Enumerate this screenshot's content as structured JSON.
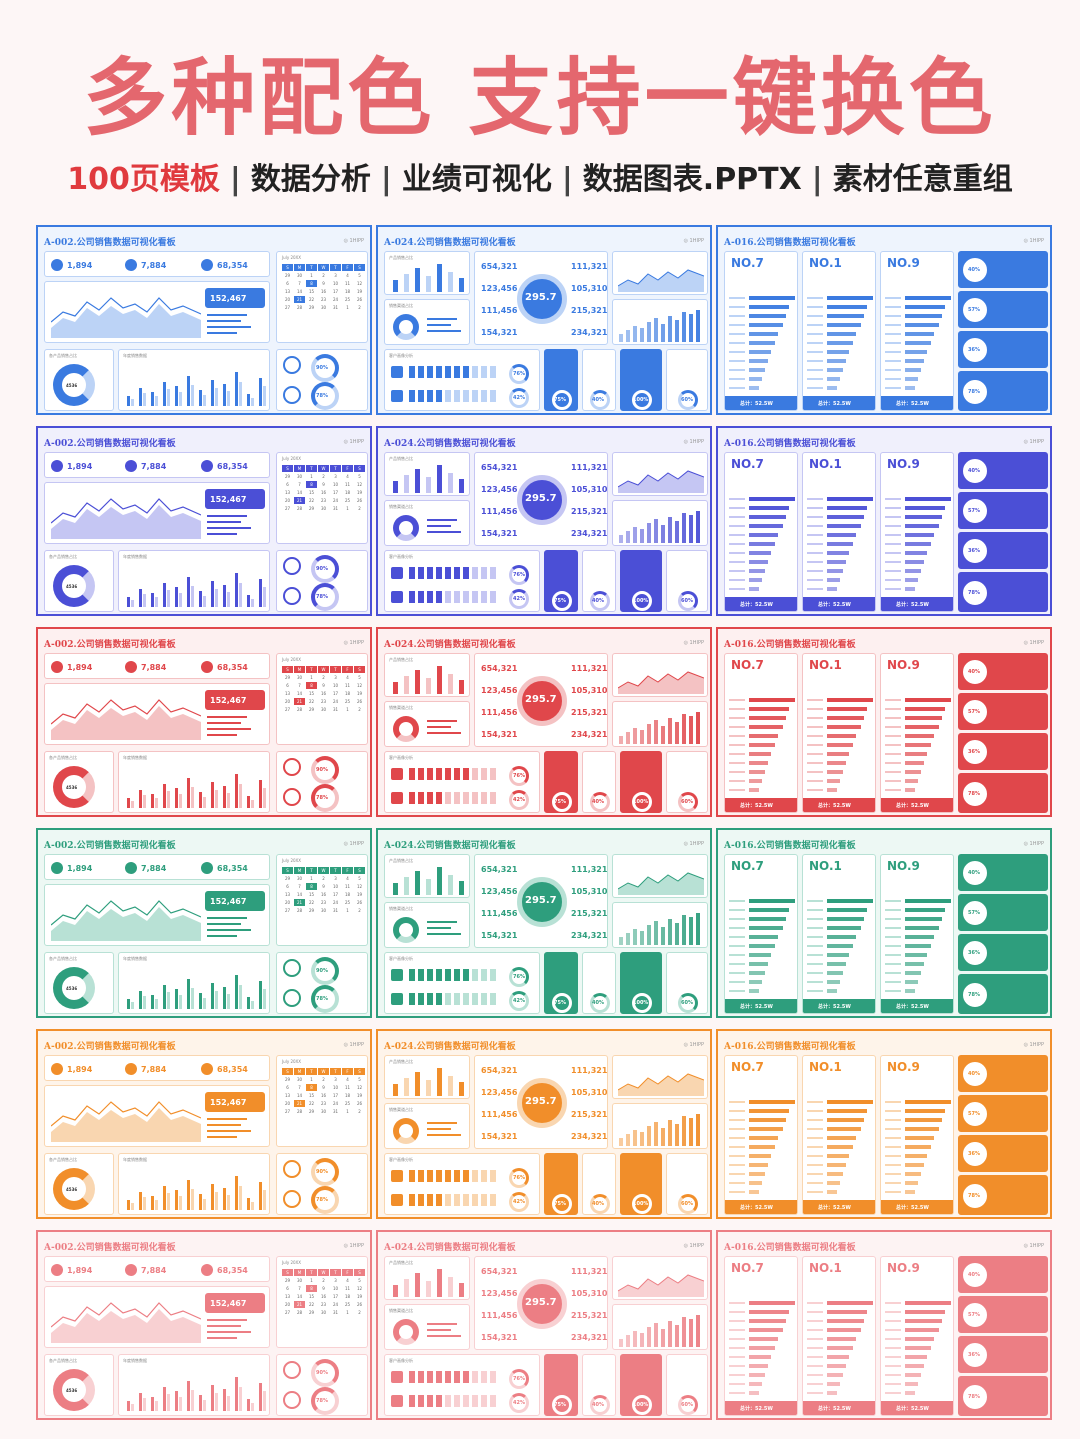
{
  "headline": "多种配色 支持一键换色",
  "subline": {
    "highlight": "100页模板",
    "items": [
      "数据分析",
      "业绩可视化",
      "数据图表.PPTX",
      "素材任意重组"
    ],
    "separator": "|"
  },
  "themes": [
    {
      "name": "blue",
      "color": "#3a7ae0",
      "soft": "#bcd3f6",
      "tint": "#eef4fd"
    },
    {
      "name": "indigo",
      "color": "#4b4fd6",
      "soft": "#c5c6f3",
      "tint": "#f0f0fc"
    },
    {
      "name": "red",
      "color": "#e0474b",
      "soft": "#f4c2c3",
      "tint": "#fdf0f0"
    },
    {
      "name": "green",
      "color": "#2e9e7d",
      "soft": "#b8e1d5",
      "tint": "#edf8f4"
    },
    {
      "name": "orange",
      "color": "#f18e2a",
      "soft": "#f9d6b0",
      "tint": "#fef4ea"
    },
    {
      "name": "pink",
      "color": "#ec7e84",
      "soft": "#f8d0d2",
      "tint": "#fdf3f3"
    }
  ],
  "templates": {
    "a002": {
      "title": "A-002.公司销售数据可视化看板",
      "logo": "◎ 1HIPP",
      "stat1": "1,894",
      "stat2": "7,884",
      "stat3": "68,354",
      "highlight_value": "152,467",
      "calendar_title": "July 20XX",
      "calendar_days": [
        "S",
        "M",
        "T",
        "W",
        "T",
        "F",
        "S",
        "29",
        "30",
        "1",
        "2",
        "3",
        "4",
        "5",
        "6",
        "7",
        "8",
        "9",
        "10",
        "11",
        "12",
        "13",
        "14",
        "15",
        "16",
        "17",
        "18",
        "19",
        "20",
        "21",
        "22",
        "23",
        "24",
        "25",
        "26",
        "27",
        "28",
        "29",
        "30",
        "31",
        "1",
        "2"
      ],
      "donut_value": "4536",
      "pct1": "90%",
      "pct2": "78%",
      "section1": "各产品销售占比",
      "section2": "年度销售数据"
    },
    "a024": {
      "title": "A-024.公司销售数据可视化看板",
      "logo": "◎ 1HIPP",
      "center_value": "295.7",
      "values_left": [
        "654,321",
        "123,456",
        "111,456",
        "154,321"
      ],
      "values_right": [
        "111,321",
        "105,310",
        "215,321",
        "234,321"
      ],
      "pct_a": "76%",
      "pct_b": "42%",
      "pct_c": "75%",
      "pct_d": "40%",
      "pct_e": "100%",
      "pct_f": "60%",
      "section1": "产品销售占比",
      "section2": "销售渠道占比",
      "section3": "客户画像分析"
    },
    "a016": {
      "title": "A-016.公司销售数据可视化看板",
      "logo": "◎ 1HIPP",
      "rank1": "NO.7",
      "rank2": "NO.1",
      "rank3": "NO.9",
      "total": "总计：52.5W",
      "side_pcts": [
        "40%",
        "57%",
        "36%",
        "78%"
      ]
    }
  }
}
